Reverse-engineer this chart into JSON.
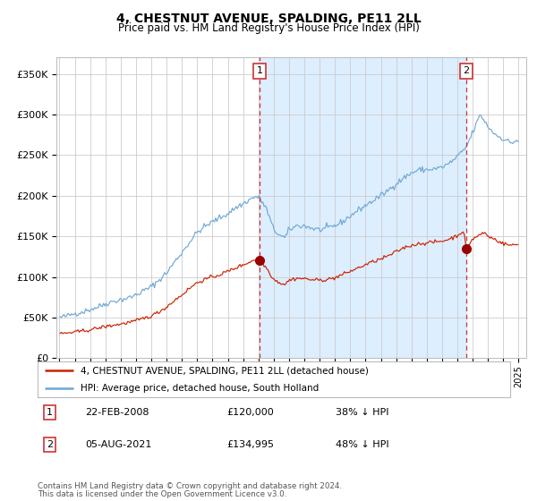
{
  "title": "4, CHESTNUT AVENUE, SPALDING, PE11 2LL",
  "subtitle": "Price paid vs. HM Land Registry's House Price Index (HPI)",
  "legend_line1": "4, CHESTNUT AVENUE, SPALDING, PE11 2LL (detached house)",
  "legend_line2": "HPI: Average price, detached house, South Holland",
  "footnote1": "Contains HM Land Registry data © Crown copyright and database right 2024.",
  "footnote2": "This data is licensed under the Open Government Licence v3.0.",
  "sale1_date": "22-FEB-2008",
  "sale1_price": 120000,
  "sale1_label": "38% ↓ HPI",
  "sale2_date": "05-AUG-2021",
  "sale2_price": 134995,
  "sale2_label": "48% ↓ HPI",
  "hpi_color": "#6fa8d4",
  "red_color": "#cc2200",
  "sale_dot_color": "#990000",
  "shading_color": "#ddeeff",
  "dashed_line_color": "#cc3333",
  "background_color": "#ffffff",
  "grid_color": "#cccccc",
  "ylim": [
    0,
    370000
  ],
  "yticks": [
    0,
    50000,
    100000,
    150000,
    200000,
    250000,
    300000,
    350000
  ],
  "sale1_x": 2008.08,
  "sale2_x": 2021.58,
  "hpi_anchors_x": [
    1995.0,
    1995.5,
    1996.0,
    1996.5,
    1997.0,
    1997.5,
    1998.0,
    1998.5,
    1999.0,
    1999.5,
    2000.0,
    2000.5,
    2001.0,
    2001.5,
    2002.0,
    2002.5,
    2003.0,
    2003.5,
    2004.0,
    2004.5,
    2005.0,
    2005.5,
    2006.0,
    2006.5,
    2007.0,
    2007.5,
    2007.83,
    2008.08,
    2008.5,
    2009.0,
    2009.5,
    2009.75,
    2010.0,
    2010.5,
    2011.0,
    2011.5,
    2012.0,
    2012.5,
    2013.0,
    2013.5,
    2014.0,
    2014.5,
    2015.0,
    2015.5,
    2016.0,
    2016.5,
    2017.0,
    2017.5,
    2018.0,
    2018.5,
    2019.0,
    2019.5,
    2020.0,
    2020.5,
    2021.0,
    2021.5,
    2021.58,
    2022.0,
    2022.5,
    2023.0,
    2023.5,
    2024.0,
    2024.5,
    2024.9
  ],
  "hpi_anchors_y": [
    50000,
    52000,
    55000,
    57000,
    60000,
    63000,
    67000,
    70000,
    72000,
    74000,
    78000,
    83000,
    88000,
    96000,
    105000,
    118000,
    130000,
    143000,
    155000,
    162000,
    168000,
    173000,
    178000,
    185000,
    190000,
    196000,
    199000,
    197000,
    185000,
    158000,
    150000,
    148000,
    158000,
    163000,
    163000,
    160000,
    158000,
    160000,
    163000,
    168000,
    175000,
    182000,
    188000,
    194000,
    200000,
    207000,
    215000,
    222000,
    228000,
    232000,
    232000,
    233000,
    235000,
    240000,
    248000,
    258000,
    260000,
    278000,
    300000,
    285000,
    275000,
    270000,
    265000,
    268000
  ],
  "red_anchors_x": [
    1995.0,
    1995.5,
    1996.0,
    1996.5,
    1997.0,
    1997.5,
    1998.0,
    1998.5,
    1999.0,
    1999.5,
    2000.0,
    2000.5,
    2001.0,
    2001.5,
    2002.0,
    2002.5,
    2003.0,
    2003.5,
    2004.0,
    2004.5,
    2005.0,
    2005.5,
    2006.0,
    2006.5,
    2007.0,
    2007.5,
    2007.83,
    2008.08,
    2008.5,
    2009.0,
    2009.5,
    2009.75,
    2010.0,
    2010.5,
    2011.0,
    2011.5,
    2012.0,
    2012.5,
    2013.0,
    2013.5,
    2014.0,
    2014.5,
    2015.0,
    2015.5,
    2016.0,
    2016.5,
    2017.0,
    2017.5,
    2018.0,
    2018.5,
    2019.0,
    2019.5,
    2020.0,
    2020.5,
    2021.0,
    2021.4,
    2021.58,
    2021.75,
    2022.0,
    2022.5,
    2022.75,
    2023.0,
    2023.5,
    2024.0,
    2024.5,
    2024.9
  ],
  "red_anchors_y": [
    30000,
    31000,
    32000,
    33500,
    35000,
    37000,
    39000,
    40500,
    42000,
    44000,
    46000,
    49000,
    52000,
    57000,
    63000,
    71000,
    78000,
    86000,
    93000,
    97000,
    100000,
    103000,
    107000,
    111000,
    115000,
    119000,
    122000,
    120000,
    112000,
    97000,
    92000,
    91000,
    96000,
    98500,
    98000,
    96500,
    96000,
    97000,
    99000,
    103000,
    107000,
    111000,
    115000,
    119000,
    122000,
    126000,
    131000,
    136000,
    139000,
    141000,
    142000,
    143000,
    144000,
    147000,
    151000,
    157000,
    134995,
    140000,
    147000,
    152000,
    155000,
    150000,
    146000,
    141000,
    139000,
    140000
  ]
}
